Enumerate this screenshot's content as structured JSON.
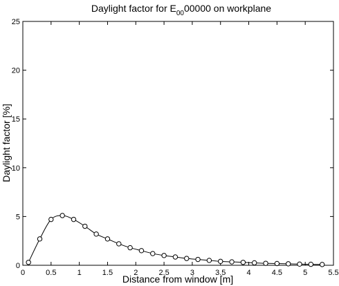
{
  "chart_data": {
    "type": "line",
    "title": {
      "prefix": "Daylight factor for E",
      "subscript": "00",
      "suffix": "00000 on workplane"
    },
    "xlabel": "Distance from window [m]",
    "ylabel": "Daylight factor [%]",
    "xlim": [
      0,
      5.5
    ],
    "ylim": [
      0,
      25
    ],
    "xticks": [
      "0",
      "0.5",
      "1",
      "1.5",
      "2",
      "2.5",
      "3",
      "3.5",
      "4",
      "4.5",
      "5",
      "5.5"
    ],
    "yticks": [
      "0",
      "5",
      "10",
      "15",
      "20",
      "25"
    ],
    "grid": false,
    "marker": "circle-open",
    "series": [
      {
        "x": [
          0.1,
          0.3,
          0.5,
          0.7,
          0.9,
          1.1,
          1.3,
          1.5,
          1.7,
          1.9,
          2.1,
          2.3,
          2.5,
          2.7,
          2.9,
          3.1,
          3.3,
          3.5,
          3.7,
          3.9,
          4.1,
          4.3,
          4.5,
          4.7,
          4.9,
          5.1,
          5.3
        ],
        "y": [
          0.3,
          2.7,
          4.7,
          5.1,
          4.7,
          4.0,
          3.2,
          2.7,
          2.2,
          1.8,
          1.5,
          1.2,
          1.0,
          0.85,
          0.7,
          0.6,
          0.5,
          0.4,
          0.35,
          0.3,
          0.25,
          0.2,
          0.18,
          0.15,
          0.12,
          0.1,
          0.08
        ]
      }
    ]
  }
}
